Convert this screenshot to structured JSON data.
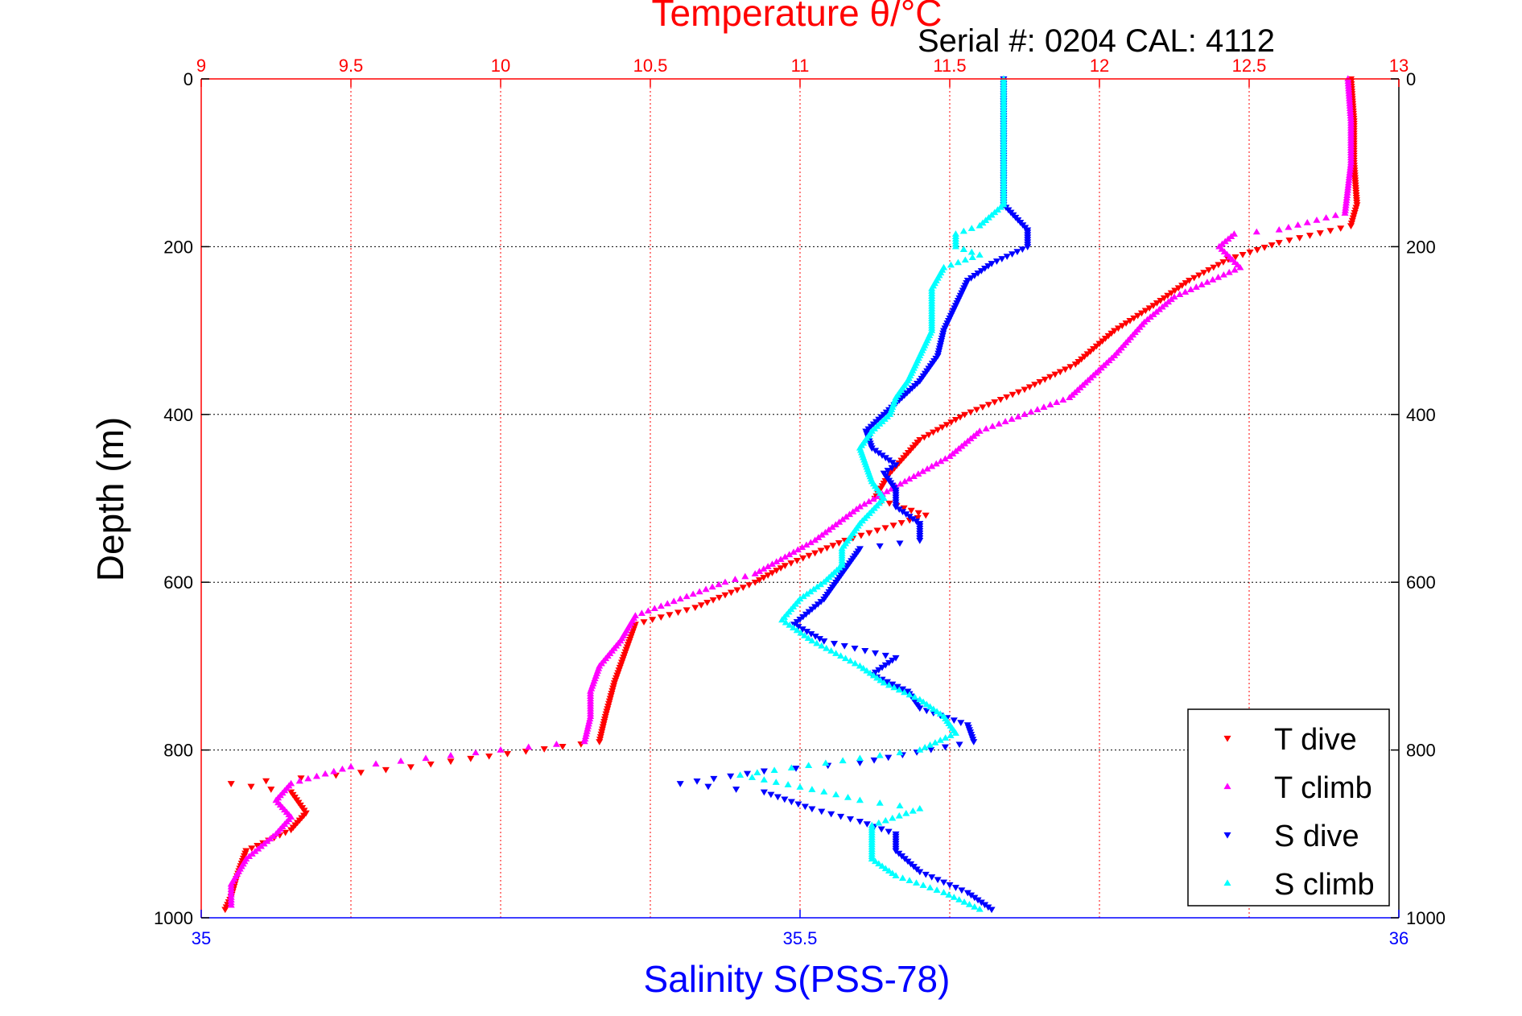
{
  "chart_data": {
    "type": "scatter",
    "title": "Temperature θ/°C",
    "subtitle": "Serial #: 0204  CAL: 4112",
    "x_top": {
      "label": "Temperature θ/°C",
      "range": [
        9,
        13
      ],
      "ticks": [
        "9",
        "9.5",
        "10",
        "10.5",
        "11",
        "11.5",
        "12",
        "12.5",
        "13"
      ],
      "tick_values": [
        9,
        9.5,
        10,
        10.5,
        11,
        11.5,
        12,
        12.5,
        13
      ],
      "color": "#ff0000",
      "grid": true
    },
    "x_bottom": {
      "label": "Salinity S(PSS-78)",
      "range": [
        35,
        36
      ],
      "ticks": [
        "35",
        "35.5",
        "36"
      ],
      "tick_values": [
        35,
        35.5,
        36
      ],
      "color": "#0000ff"
    },
    "y": {
      "label": "Depth (m)",
      "range": [
        0,
        1000
      ],
      "reversed": true,
      "ticks": [
        "0",
        "200",
        "400",
        "600",
        "800",
        "1000"
      ],
      "tick_values": [
        0,
        200,
        400,
        600,
        800,
        1000
      ],
      "grid": true
    },
    "legend_position": "bottom-right",
    "series": [
      {
        "name": "T dive",
        "axis": "temperature",
        "color": "#ff0000",
        "marker": "triangle-down",
        "points": [
          [
            12.84,
            0
          ],
          [
            12.85,
            50
          ],
          [
            12.85,
            100
          ],
          [
            12.86,
            150
          ],
          [
            12.84,
            175
          ],
          [
            12.6,
            195
          ],
          [
            12.43,
            215
          ],
          [
            12.3,
            240
          ],
          [
            12.18,
            270
          ],
          [
            12.05,
            300
          ],
          [
            11.92,
            340
          ],
          [
            11.75,
            370
          ],
          [
            11.55,
            400
          ],
          [
            11.4,
            430
          ],
          [
            11.3,
            470
          ],
          [
            11.25,
            500
          ],
          [
            11.42,
            520
          ],
          [
            11.15,
            550
          ],
          [
            10.95,
            580
          ],
          [
            10.85,
            600
          ],
          [
            10.65,
            630
          ],
          [
            10.45,
            650
          ],
          [
            10.42,
            680
          ],
          [
            10.38,
            720
          ],
          [
            10.35,
            760
          ],
          [
            10.33,
            790
          ],
          [
            9.9,
            810
          ],
          [
            9.7,
            820
          ],
          [
            9.45,
            830
          ],
          [
            9.1,
            840
          ],
          [
            9.3,
            850
          ],
          [
            9.35,
            875
          ],
          [
            9.3,
            895
          ],
          [
            9.15,
            920
          ],
          [
            9.12,
            950
          ],
          [
            9.1,
            975
          ],
          [
            9.08,
            990
          ]
        ]
      },
      {
        "name": "T climb",
        "axis": "temperature",
        "color": "#ff00ff",
        "marker": "triangle-up",
        "points": [
          [
            12.83,
            0
          ],
          [
            12.84,
            50
          ],
          [
            12.84,
            100
          ],
          [
            12.82,
            160
          ],
          [
            12.6,
            180
          ],
          [
            12.45,
            185
          ],
          [
            12.4,
            200
          ],
          [
            12.47,
            225
          ],
          [
            12.25,
            260
          ],
          [
            12.15,
            290
          ],
          [
            12.05,
            330
          ],
          [
            11.9,
            380
          ],
          [
            11.75,
            400
          ],
          [
            11.6,
            420
          ],
          [
            11.5,
            450
          ],
          [
            11.35,
            480
          ],
          [
            11.2,
            510
          ],
          [
            11.05,
            550
          ],
          [
            10.95,
            570
          ],
          [
            10.85,
            590
          ],
          [
            10.75,
            600
          ],
          [
            10.6,
            620
          ],
          [
            10.45,
            640
          ],
          [
            10.4,
            670
          ],
          [
            10.33,
            700
          ],
          [
            10.3,
            730
          ],
          [
            10.3,
            760
          ],
          [
            10.28,
            790
          ],
          [
            10.0,
            800
          ],
          [
            9.75,
            810
          ],
          [
            9.5,
            820
          ],
          [
            9.3,
            840
          ],
          [
            9.25,
            860
          ],
          [
            9.3,
            880
          ],
          [
            9.25,
            900
          ],
          [
            9.15,
            930
          ],
          [
            9.1,
            960
          ],
          [
            9.1,
            985
          ]
        ]
      },
      {
        "name": "S dive",
        "axis": "salinity",
        "color": "#0000ff",
        "marker": "triangle-down",
        "points": [
          [
            35.67,
            0
          ],
          [
            35.67,
            50
          ],
          [
            35.67,
            100
          ],
          [
            35.67,
            150
          ],
          [
            35.69,
            180
          ],
          [
            35.69,
            200
          ],
          [
            35.66,
            220
          ],
          [
            35.64,
            240
          ],
          [
            35.63,
            270
          ],
          [
            35.62,
            300
          ],
          [
            35.615,
            330
          ],
          [
            35.6,
            360
          ],
          [
            35.585,
            380
          ],
          [
            35.57,
            400
          ],
          [
            35.555,
            420
          ],
          [
            35.56,
            440
          ],
          [
            35.58,
            460
          ],
          [
            35.57,
            470
          ],
          [
            35.58,
            490
          ],
          [
            35.58,
            510
          ],
          [
            35.6,
            530
          ],
          [
            35.6,
            550
          ],
          [
            35.55,
            560
          ],
          [
            35.54,
            580
          ],
          [
            35.53,
            600
          ],
          [
            35.52,
            620
          ],
          [
            35.495,
            650
          ],
          [
            35.52,
            670
          ],
          [
            35.58,
            690
          ],
          [
            35.56,
            710
          ],
          [
            35.59,
            730
          ],
          [
            35.6,
            750
          ],
          [
            35.64,
            770
          ],
          [
            35.645,
            790
          ],
          [
            35.55,
            815
          ],
          [
            35.47,
            825
          ],
          [
            35.4,
            840
          ],
          [
            35.47,
            850
          ],
          [
            35.51,
            870
          ],
          [
            35.55,
            885
          ],
          [
            35.58,
            900
          ],
          [
            35.58,
            920
          ],
          [
            35.6,
            945
          ],
          [
            35.64,
            970
          ],
          [
            35.66,
            990
          ]
        ]
      },
      {
        "name": "S climb",
        "axis": "salinity",
        "color": "#00ffff",
        "marker": "triangle-up",
        "points": [
          [
            35.67,
            0
          ],
          [
            35.67,
            50
          ],
          [
            35.67,
            100
          ],
          [
            35.67,
            150
          ],
          [
            35.65,
            175
          ],
          [
            35.63,
            185
          ],
          [
            35.63,
            200
          ],
          [
            35.65,
            210
          ],
          [
            35.62,
            225
          ],
          [
            35.61,
            250
          ],
          [
            35.61,
            280
          ],
          [
            35.61,
            300
          ],
          [
            35.6,
            330
          ],
          [
            35.59,
            360
          ],
          [
            35.58,
            380
          ],
          [
            35.575,
            400
          ],
          [
            35.56,
            420
          ],
          [
            35.55,
            440
          ],
          [
            35.555,
            460
          ],
          [
            35.56,
            480
          ],
          [
            35.57,
            500
          ],
          [
            35.55,
            530
          ],
          [
            35.535,
            560
          ],
          [
            35.535,
            580
          ],
          [
            35.52,
            600
          ],
          [
            35.5,
            620
          ],
          [
            35.485,
            645
          ],
          [
            35.51,
            670
          ],
          [
            35.55,
            700
          ],
          [
            35.57,
            720
          ],
          [
            35.6,
            740
          ],
          [
            35.62,
            760
          ],
          [
            35.63,
            780
          ],
          [
            35.6,
            800
          ],
          [
            35.55,
            810
          ],
          [
            35.45,
            830
          ],
          [
            35.52,
            850
          ],
          [
            35.55,
            860
          ],
          [
            35.6,
            870
          ],
          [
            35.56,
            890
          ],
          [
            35.56,
            910
          ],
          [
            35.56,
            930
          ],
          [
            35.58,
            950
          ],
          [
            35.62,
            970
          ],
          [
            35.65,
            990
          ]
        ]
      }
    ]
  }
}
